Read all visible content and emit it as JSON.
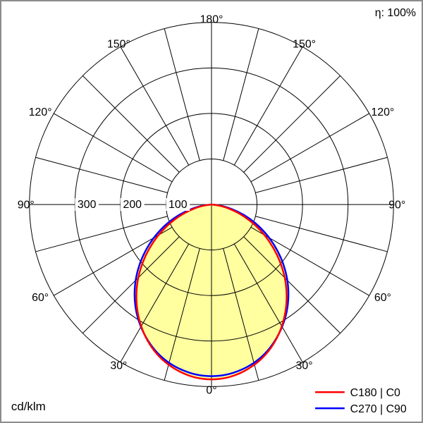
{
  "corner": {
    "efficiency": "η: 100%",
    "unit": "cd/klm"
  },
  "chart_data": {
    "type": "polar",
    "description": "Luminous intensity distribution polar curve",
    "unit": "cd/klm",
    "radial_ticks": [
      100,
      200,
      300
    ],
    "radial_tick_labels": [
      "100",
      "200",
      "300"
    ],
    "radial_max": 400,
    "spoke_step_deg": 15,
    "angle_labels": [
      {
        "deg": 0,
        "text": "0°"
      },
      {
        "deg": 30,
        "text": "30°"
      },
      {
        "deg": 60,
        "text": "60°"
      },
      {
        "deg": 90,
        "text": "90°"
      },
      {
        "deg": 120,
        "text": "120°"
      },
      {
        "deg": 150,
        "text": "150°"
      },
      {
        "deg": 180,
        "text": "180°"
      }
    ],
    "gamma_deg": [
      0,
      5,
      10,
      15,
      20,
      25,
      30,
      35,
      40,
      45,
      50,
      55,
      60,
      65,
      70,
      75,
      80,
      85,
      90
    ],
    "series": [
      {
        "name": "C180 | C0",
        "color": "#ff0000",
        "values": [
          385,
          383,
          376,
          365,
          351,
          332,
          310,
          285,
          258,
          229,
          198,
          167,
          136,
          106,
          77,
          51,
          28,
          10,
          0
        ]
      },
      {
        "name": "C270 | C90",
        "color": "#0000ff",
        "values": [
          378,
          376,
          370,
          361,
          348,
          331,
          311,
          289,
          264,
          237,
          208,
          178,
          148,
          118,
          89,
          61,
          36,
          14,
          0
        ]
      }
    ],
    "fill_color": "#ffffa0",
    "grid_color": "#000000"
  }
}
